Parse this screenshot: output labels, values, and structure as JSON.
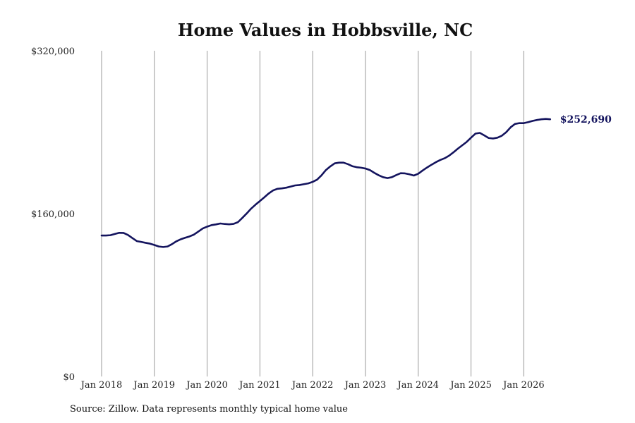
{
  "chart_data": {
    "type": "line",
    "title": "Home Values in Hobbsville, NC",
    "xlabel": "",
    "ylabel": "",
    "x_tick_labels": [
      "Jan 2018",
      "Jan 2019",
      "Jan 2020",
      "Jan 2021",
      "Jan 2022",
      "Jan 2023",
      "Jan 2024",
      "Jan 2025",
      "Jan 2026"
    ],
    "y_tick_labels": [
      "$320,000",
      "$160,000",
      "$0"
    ],
    "y_ticks": [
      320000,
      160000,
      0
    ],
    "ylim": [
      0,
      320000
    ],
    "xlim": [
      "2018-01",
      "2026-07"
    ],
    "grid": "vertical lines at each January",
    "line_color": "#14145e",
    "end_label": "$252,690",
    "series": [
      {
        "x": [
          "2018-01",
          "2018-02",
          "2018-03",
          "2018-04",
          "2018-05",
          "2018-06",
          "2018-07",
          "2018-08",
          "2018-09",
          "2018-10",
          "2018-11",
          "2018-12",
          "2019-01",
          "2019-02",
          "2019-03",
          "2019-04",
          "2019-05",
          "2019-06",
          "2019-07",
          "2019-08",
          "2019-09",
          "2019-10",
          "2019-11",
          "2019-12",
          "2020-01",
          "2020-02",
          "2020-03",
          "2020-04",
          "2020-05",
          "2020-06",
          "2020-07",
          "2020-08",
          "2020-09",
          "2020-10",
          "2020-11",
          "2020-12",
          "2021-01",
          "2021-02",
          "2021-03",
          "2021-04",
          "2021-05",
          "2021-06",
          "2021-07",
          "2021-08",
          "2021-09",
          "2021-10",
          "2021-11",
          "2021-12",
          "2022-01",
          "2022-02",
          "2022-03",
          "2022-04",
          "2022-05",
          "2022-06",
          "2022-07",
          "2022-08",
          "2022-09",
          "2022-10",
          "2022-11",
          "2022-12",
          "2023-01",
          "2023-02",
          "2023-03",
          "2023-04",
          "2023-05",
          "2023-06",
          "2023-07",
          "2023-08",
          "2023-09",
          "2023-10",
          "2023-11",
          "2023-12",
          "2024-01",
          "2024-02",
          "2024-03",
          "2024-04",
          "2024-05",
          "2024-06",
          "2024-07",
          "2024-08",
          "2024-09",
          "2024-10",
          "2024-11",
          "2024-12",
          "2025-01",
          "2025-02",
          "2025-03",
          "2025-04",
          "2025-05",
          "2025-06",
          "2025-07",
          "2025-08",
          "2025-09",
          "2025-10",
          "2025-11",
          "2025-12",
          "2026-01",
          "2026-02",
          "2026-03",
          "2026-04",
          "2026-05",
          "2026-06",
          "2026-07"
        ],
        "values": [
          138500,
          138500,
          138800,
          140000,
          141100,
          141000,
          139000,
          136000,
          133000,
          132200,
          131300,
          130500,
          129200,
          127700,
          127200,
          127700,
          130000,
          132800,
          134800,
          136300,
          137600,
          139400,
          142400,
          145400,
          147200,
          148700,
          149400,
          150300,
          149800,
          149500,
          149900,
          151600,
          155800,
          160200,
          164900,
          168800,
          172400,
          176000,
          179800,
          182800,
          184400,
          184800,
          185500,
          186600,
          187700,
          188100,
          188900,
          189700,
          191200,
          193400,
          197600,
          202800,
          206400,
          209400,
          210100,
          210100,
          208600,
          206600,
          205600,
          205100,
          204300,
          202800,
          200100,
          197700,
          195800,
          194900,
          195800,
          197900,
          199700,
          199500,
          198600,
          197400,
          199200,
          202400,
          205300,
          208000,
          210500,
          212700,
          214400,
          216900,
          220200,
          223800,
          227100,
          230400,
          234600,
          238600,
          239300,
          236900,
          234300,
          233800,
          234600,
          236500,
          240000,
          244800,
          248100,
          248900,
          248900,
          249900,
          251100,
          252000,
          252700,
          253000,
          252690
        ]
      }
    ]
  },
  "footer": {
    "source_note": "Source: Zillow. Data represents monthly typical home value"
  }
}
